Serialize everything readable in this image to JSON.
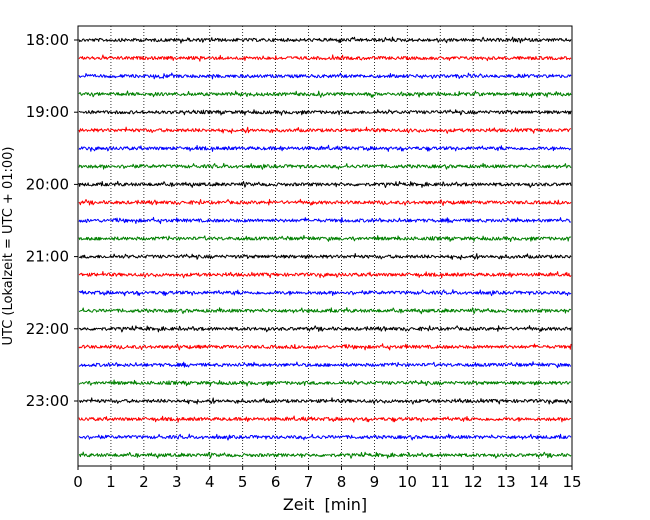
{
  "chart_data": {
    "type": "line",
    "title": "",
    "xlabel": "Zeit  [min]",
    "ylabel": "UTC (Lokalzeit = UTC + 01:00)",
    "xlim": [
      0,
      15
    ],
    "x_ticks": [
      0,
      1,
      2,
      3,
      4,
      5,
      6,
      7,
      8,
      9,
      10,
      11,
      12,
      13,
      14,
      15
    ],
    "x_tick_labels": [
      "0",
      "1",
      "2",
      "3",
      "4",
      "5",
      "6",
      "7",
      "8",
      "9",
      "10",
      "11",
      "12",
      "13",
      "14",
      "15"
    ],
    "y_tick_labels": [
      "18:00",
      "19:00",
      "20:00",
      "21:00",
      "22:00",
      "23:00"
    ],
    "grid": "vertical dotted at each minute",
    "legend": "none",
    "row_start_times": [
      "18:00",
      "18:15",
      "18:30",
      "18:45",
      "19:00",
      "19:15",
      "19:30",
      "19:45",
      "20:00",
      "20:15",
      "20:30",
      "20:45",
      "21:00",
      "21:15",
      "21:30",
      "21:45",
      "22:00",
      "22:15",
      "22:30",
      "22:45",
      "23:00",
      "23:15",
      "23:30",
      "23:45"
    ],
    "row_colors_cycle": [
      "#000000",
      "#ff0000",
      "#0000ff",
      "#008000"
    ],
    "trace_note": "helicorder seismogram traces; amplitude axis unlabeled"
  }
}
